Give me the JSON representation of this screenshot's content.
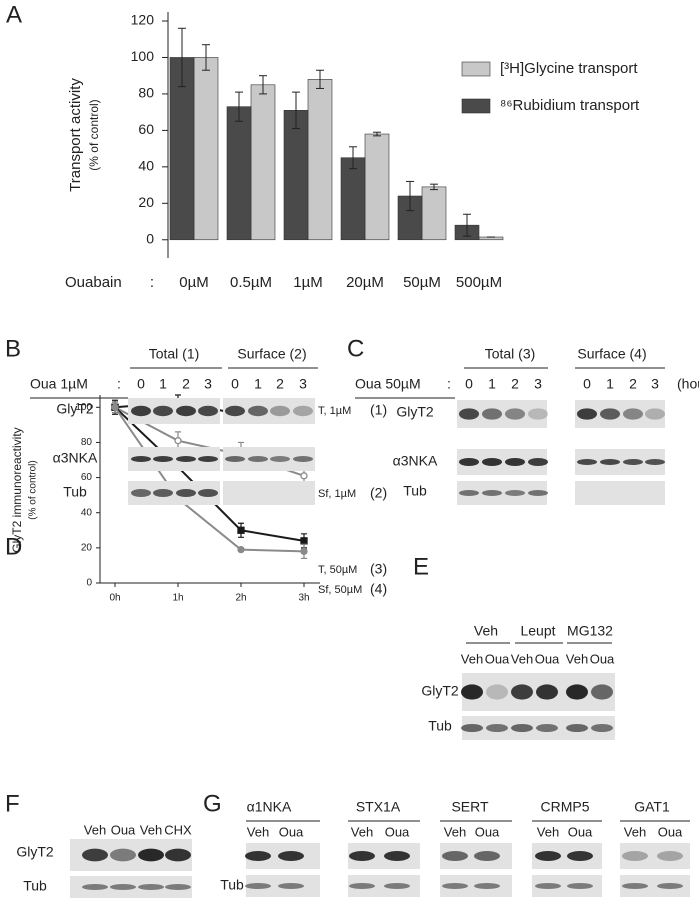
{
  "chart_data": [
    {
      "type": "bar",
      "panel": "A",
      "y_label": "Transport activity",
      "y_label_sub": "(% of control)",
      "x_label": "Ouabain",
      "x_label_sep": ":",
      "categories": [
        "0µM",
        "0.5µM",
        "1µM",
        "20µM",
        "50µM",
        "500µM"
      ],
      "series": [
        {
          "name": "[³H]Glycine transport",
          "color": "#c8c8c8",
          "values": [
            100,
            85,
            88,
            58,
            29,
            1.5
          ],
          "errors": [
            7,
            5,
            5,
            1,
            1.5,
            0
          ]
        },
        {
          "name": "⁸⁶Rubidium transport",
          "color": "#4a4a4a",
          "values": [
            100,
            73,
            71,
            45,
            24,
            8
          ],
          "errors": [
            16,
            8,
            10,
            6,
            8,
            6
          ]
        }
      ],
      "ylim": [
        -10,
        120
      ],
      "yticks": [
        0,
        20,
        40,
        60,
        80,
        100,
        120
      ]
    },
    {
      "type": "line",
      "panel": "D",
      "y_label": "GlyT2 immunoreactivity",
      "y_label_sub": "(% of control)",
      "categories": [
        "0h",
        "1h",
        "2h",
        "3h"
      ],
      "series": [
        {
          "name": "T, 1µM",
          "tag": "(1)",
          "color": "#1a1a1a",
          "values": [
            100,
            103,
            96,
            98
          ],
          "errors": [
            4,
            4,
            2,
            2
          ]
        },
        {
          "name": "Sf, 1µM",
          "tag": "(2)",
          "color": "#8a8a8a",
          "values": [
            100,
            81,
            73,
            61
          ],
          "errors": [
            3,
            5,
            7,
            6
          ]
        },
        {
          "name": "T, 50µM",
          "tag": "(3)",
          "color": "#1a1a1a",
          "values": [
            100,
            66,
            30,
            24
          ],
          "errors": [
            3,
            1,
            4,
            4
          ]
        },
        {
          "name": "Sf, 50µM",
          "tag": "(4)",
          "color": "#8a8a8a",
          "values": [
            100,
            48,
            19,
            18
          ],
          "errors": [
            3,
            3,
            1,
            4
          ]
        }
      ],
      "ylim": [
        0,
        107
      ],
      "yticks": [
        0,
        20,
        40,
        60,
        80,
        100
      ]
    }
  ],
  "blots": {
    "B": {
      "letter": "B",
      "treatment": "Oua 1µM",
      "sep": ":",
      "groups": [
        "Total (1)",
        "Surface (2)"
      ],
      "lanes": [
        "0",
        "1",
        "2",
        "3",
        "0",
        "1",
        "2",
        "3"
      ],
      "rows": [
        "GlyT2",
        "α3NKA",
        "Tub"
      ]
    },
    "C": {
      "letter": "C",
      "treatment": "Oua 50µM",
      "sep": ":",
      "groups": [
        "Total (3)",
        "Surface (4)"
      ],
      "lanes": [
        "0",
        "1",
        "2",
        "3",
        "0",
        "1",
        "2",
        "3"
      ],
      "unit": "(hours)",
      "rows": [
        "GlyT2",
        "α3NKA",
        "Tub"
      ]
    },
    "E": {
      "letter": "E",
      "groups": [
        "Veh",
        "Leupt",
        "MG132"
      ],
      "lanes": [
        "Veh",
        "Oua",
        "Veh",
        "Oua",
        "Veh",
        "Oua"
      ],
      "rows": [
        "GlyT2",
        "Tub"
      ]
    },
    "F": {
      "letter": "F",
      "lanes": [
        "Veh",
        "Oua",
        "Veh",
        "CHX"
      ],
      "rows": [
        "GlyT2",
        "Tub"
      ]
    },
    "G": {
      "letter": "G",
      "groups": [
        "α1NKA",
        "STX1A",
        "SERT",
        "CRMP5",
        "GAT1"
      ],
      "lanes": [
        "Veh",
        "Oua",
        "Veh",
        "Oua",
        "Veh",
        "Oua",
        "Veh",
        "Oua",
        "Veh",
        "Oua"
      ],
      "rows": [
        "Tub"
      ]
    }
  }
}
